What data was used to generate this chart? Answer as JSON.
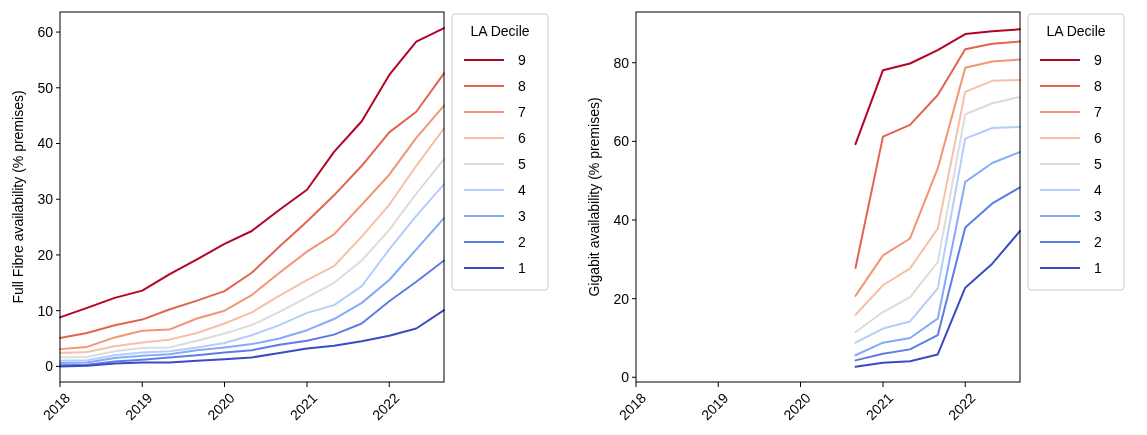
{
  "chart_data": [
    {
      "type": "line",
      "ylabel": "Full Fibre availability (% premises)",
      "legend_title": "LA Decile",
      "legend": "right",
      "grid": false,
      "marker": "none",
      "line_style": "solid",
      "x": [
        "2018-01",
        "2018-05",
        "2018-09",
        "2019-01",
        "2019-05",
        "2019-09",
        "2020-01",
        "2020-05",
        "2020-09",
        "2021-01",
        "2021-05",
        "2021-09",
        "2022-01",
        "2022-05",
        "2022-09"
      ],
      "xlim": [
        "2018-01",
        "2022-09"
      ],
      "xticks": [
        "2018",
        "2019",
        "2020",
        "2021",
        "2022"
      ],
      "ylim": [
        -2.8,
        63.6
      ],
      "yticks": [
        0,
        10,
        20,
        30,
        40,
        50,
        60
      ],
      "series": [
        {
          "name": "9",
          "color": "#b40426",
          "values": [
            8.8,
            10.5,
            12.3,
            13.6,
            16.5,
            19.2,
            22,
            24.3,
            28.1,
            31.7,
            38.5,
            44,
            52.3,
            58.3,
            60.7
          ]
        },
        {
          "name": "8",
          "color": "#e0654f",
          "values": [
            5.1,
            6.0,
            7.4,
            8.4,
            10.2,
            11.8,
            13.5,
            16.8,
            21.5,
            26,
            30.7,
            36,
            42,
            45.7,
            52.6
          ]
        },
        {
          "name": "7",
          "color": "#f39475",
          "values": [
            3.1,
            3.5,
            5.2,
            6.4,
            6.6,
            8.6,
            10,
            12.8,
            16.8,
            20.6,
            23.7,
            29,
            34.4,
            41,
            46.8
          ]
        },
        {
          "name": "6",
          "color": "#f5c0a7",
          "values": [
            2.4,
            2.6,
            3.6,
            4.3,
            4.8,
            6.0,
            7.7,
            9.7,
            12.7,
            15.5,
            18,
            23.3,
            29,
            36,
            42.7
          ]
        },
        {
          "name": "5",
          "color": "#dcdcdc",
          "values": [
            1.6,
            1.7,
            2.7,
            3.3,
            3.4,
            4.6,
            5.9,
            7.4,
            9.8,
            12.4,
            15,
            19,
            24.5,
            31,
            37.2
          ]
        },
        {
          "name": "4",
          "color": "#b5cdfa",
          "values": [
            1.0,
            1.1,
            2.0,
            2.5,
            2.7,
            3.4,
            4.2,
            5.6,
            7.4,
            9.6,
            11,
            14.4,
            21,
            27,
            32.7
          ]
        },
        {
          "name": "3",
          "color": "#86a9fc",
          "values": [
            0.6,
            0.7,
            1.5,
            1.9,
            2.2,
            2.9,
            3.4,
            4.0,
            5.0,
            6.5,
            8.5,
            11.4,
            15.5,
            21,
            26.6
          ]
        },
        {
          "name": "2",
          "color": "#5d7ce6",
          "values": [
            0.2,
            0.3,
            0.9,
            1.2,
            1.6,
            2.0,
            2.5,
            2.9,
            3.9,
            4.6,
            5.7,
            7.7,
            11.7,
            15.2,
            19.0
          ]
        },
        {
          "name": "1",
          "color": "#3b4cc0",
          "values": [
            0,
            0.1,
            0.5,
            0.7,
            0.7,
            1.0,
            1.3,
            1.6,
            2.4,
            3.2,
            3.7,
            4.5,
            5.5,
            6.8,
            10.1
          ]
        }
      ]
    },
    {
      "type": "line",
      "ylabel": "Gigabit availability (% premises)",
      "legend_title": "LA Decile",
      "legend": "right",
      "grid": false,
      "marker": "none",
      "line_style": "solid",
      "x": [
        "2020-09",
        "2021-01",
        "2021-05",
        "2021-09",
        "2022-01",
        "2022-05",
        "2022-09"
      ],
      "xlim": [
        "2018-01",
        "2022-09"
      ],
      "xticks": [
        "2018",
        "2019",
        "2020",
        "2021",
        "2022"
      ],
      "ylim": [
        -1.2,
        92.9
      ],
      "yticks": [
        0,
        20,
        40,
        60,
        80
      ],
      "series": [
        {
          "name": "9",
          "color": "#b40426",
          "values": [
            59.3,
            78.1,
            79.8,
            83.2,
            87.3,
            88.0,
            88.5
          ]
        },
        {
          "name": "8",
          "color": "#e0654f",
          "values": [
            27.8,
            61.2,
            64.2,
            71.8,
            83.4,
            84.8,
            85.4
          ]
        },
        {
          "name": "7",
          "color": "#f39475",
          "values": [
            20.7,
            31.0,
            35.3,
            53.1,
            78.7,
            80.3,
            80.8
          ]
        },
        {
          "name": "6",
          "color": "#f5c0a7",
          "values": [
            15.9,
            23.4,
            27.7,
            37.8,
            72.6,
            75.4,
            75.6
          ]
        },
        {
          "name": "5",
          "color": "#dcdcdc",
          "values": [
            11.5,
            16.6,
            20.4,
            29.3,
            66.9,
            69.7,
            71.3
          ]
        },
        {
          "name": "4",
          "color": "#b5cdfa",
          "values": [
            8.8,
            12.4,
            14.2,
            22.6,
            60.7,
            63.4,
            63.7
          ]
        },
        {
          "name": "3",
          "color": "#86a9fc",
          "values": [
            5.6,
            8.8,
            10.0,
            14.9,
            49.7,
            54.5,
            57.3
          ]
        },
        {
          "name": "2",
          "color": "#5d7ce6",
          "values": [
            4.3,
            6.0,
            7.1,
            10.7,
            38.1,
            44.2,
            48.3
          ]
        },
        {
          "name": "1",
          "color": "#3b4cc0",
          "values": [
            2.7,
            3.7,
            4.1,
            5.8,
            22.8,
            28.9,
            37.2
          ]
        }
      ]
    }
  ]
}
